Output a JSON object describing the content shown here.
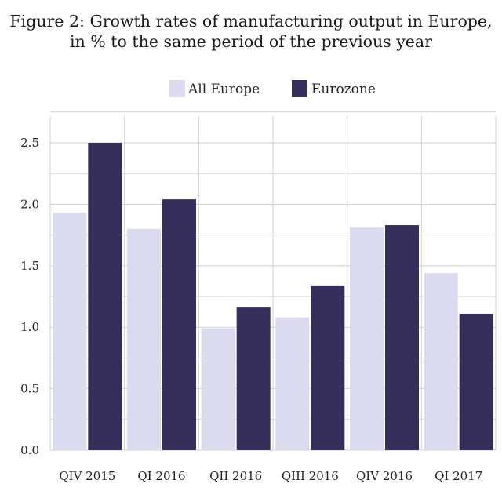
{
  "chart_data": {
    "type": "bar",
    "title": "Figure 2: Growth rates of manufacturing output in Europe,",
    "subtitle": "in % to the same period of the previous year",
    "categories": [
      "QIV 2015",
      "QI 2016",
      "QII 2016",
      "QIII 2016",
      "QIV 2016",
      "QI 2017"
    ],
    "series": [
      {
        "name": "All Europe",
        "color": "#dcdaef",
        "values": [
          1.93,
          1.8,
          0.99,
          1.08,
          1.81,
          1.44
        ]
      },
      {
        "name": "Eurozone",
        "color": "#352e5a",
        "values": [
          2.5,
          2.04,
          1.16,
          1.34,
          1.83,
          1.11
        ]
      }
    ],
    "ylim": [
      0,
      2.5
    ],
    "yticks": [
      "0.0",
      "0.5",
      "1.0",
      "1.5",
      "2.0",
      "2.5"
    ],
    "xlabel": "",
    "ylabel": "",
    "grid": true,
    "legend": "top-center"
  }
}
